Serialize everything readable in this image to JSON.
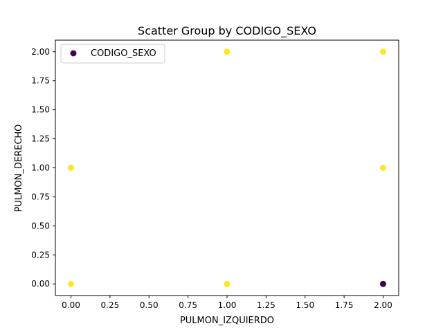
{
  "chart_data": {
    "type": "scatter",
    "title": "Scatter Group by CODIGO_SEXO",
    "xlabel": "PULMON_IZQUIERDO",
    "ylabel": "PULMON_DERECHO",
    "xlim": [
      -0.1,
      2.1
    ],
    "ylim": [
      -0.1,
      2.1
    ],
    "xticks": [
      0.0,
      0.25,
      0.5,
      0.75,
      1.0,
      1.25,
      1.5,
      1.75,
      2.0
    ],
    "yticks": [
      0.0,
      0.25,
      0.5,
      0.75,
      1.0,
      1.25,
      1.5,
      1.75,
      2.0
    ],
    "xtick_labels": [
      "0.00",
      "0.25",
      "0.50",
      "0.75",
      "1.00",
      "1.25",
      "1.50",
      "1.75",
      "2.00"
    ],
    "ytick_labels": [
      "0.00",
      "0.25",
      "0.50",
      "0.75",
      "1.00",
      "1.25",
      "1.50",
      "1.75",
      "2.00"
    ],
    "grid": false,
    "legend": {
      "placement": "upper-left",
      "entries": [
        {
          "label": "CODIGO_SEXO",
          "color": "#440154"
        }
      ]
    },
    "colormap": "viridis",
    "points": [
      {
        "x": 0,
        "y": 0,
        "group": 1,
        "color": "#fde725"
      },
      {
        "x": 0,
        "y": 1,
        "group": 1,
        "color": "#fde725"
      },
      {
        "x": 1,
        "y": 0,
        "group": 1,
        "color": "#fde725"
      },
      {
        "x": 1,
        "y": 2,
        "group": 1,
        "color": "#fde725"
      },
      {
        "x": 2,
        "y": 0,
        "group": 0,
        "color": "#440154"
      },
      {
        "x": 2,
        "y": 1,
        "group": 1,
        "color": "#fde725"
      },
      {
        "x": 2,
        "y": 2,
        "group": 1,
        "color": "#fde725"
      }
    ]
  }
}
